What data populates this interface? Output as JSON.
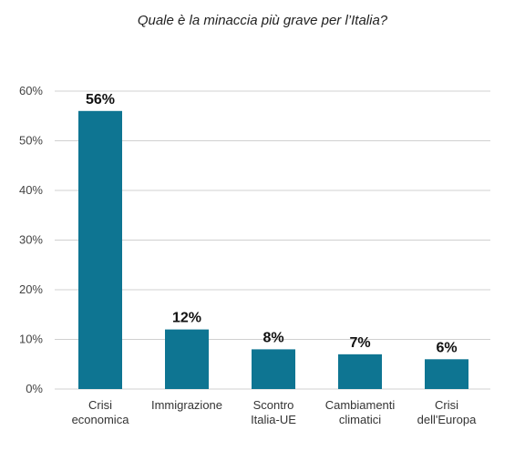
{
  "chart_data": {
    "type": "bar",
    "title": "Quale è la minaccia più grave per l’Italia?",
    "categories": [
      [
        "Crisi",
        "economica"
      ],
      [
        "Immigrazione"
      ],
      [
        "Scontro",
        "Italia-UE"
      ],
      [
        "Cambiamenti",
        "climatici"
      ],
      [
        "Crisi",
        "dell'Europa"
      ]
    ],
    "values": [
      56,
      12,
      8,
      7,
      6
    ],
    "value_labels": [
      "56%",
      "12%",
      "8%",
      "7%",
      "6%"
    ],
    "y_ticks": [
      "0%",
      "10%",
      "20%",
      "30%",
      "40%",
      "50%",
      "60%"
    ],
    "ylim": [
      0,
      60
    ],
    "grid": true,
    "bar_color": "#0e7592",
    "grid_color": "#d0d0d0"
  }
}
